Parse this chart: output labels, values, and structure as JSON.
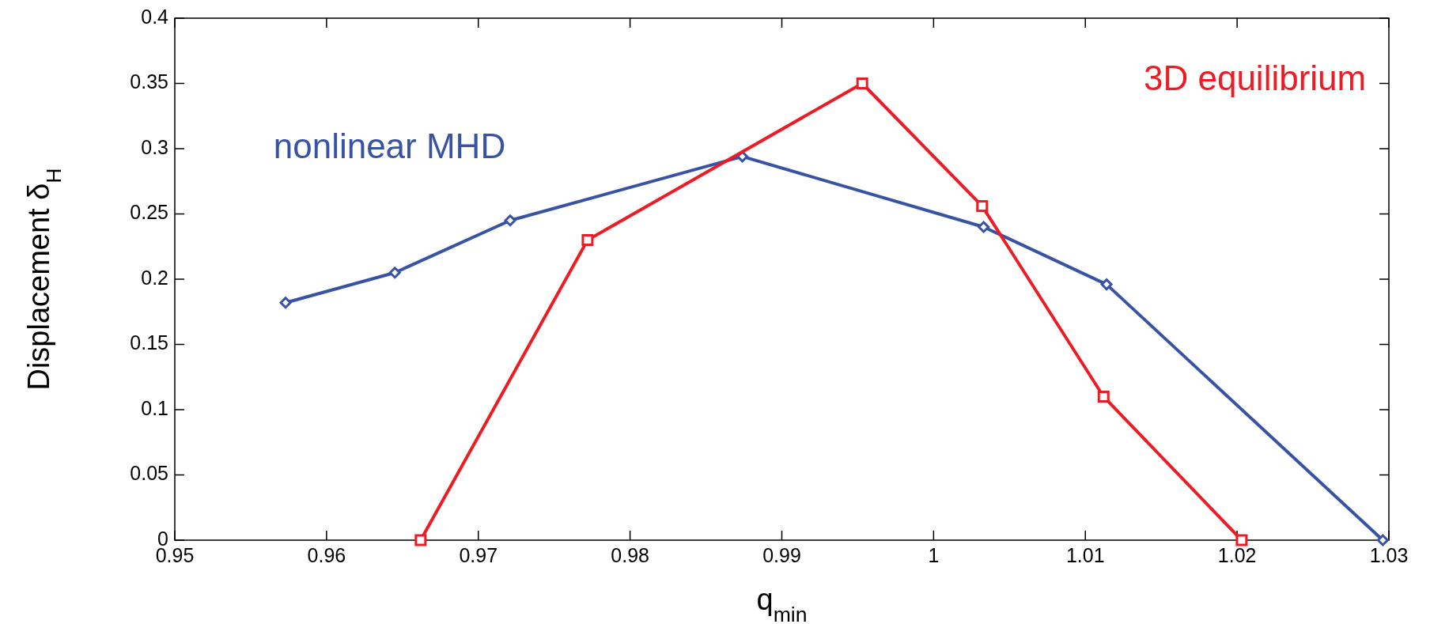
{
  "chart_data": {
    "type": "line",
    "xlabel": "q$_{min}$",
    "ylabel": "Displacement δ$_{H}$",
    "xlim": [
      0.95,
      1.03
    ],
    "xticks": [
      0.95,
      0.96,
      0.97,
      0.98,
      0.99,
      1,
      1.01,
      1.02,
      1.03
    ],
    "ylim": [
      0,
      0.4
    ],
    "yticks": [
      0,
      0.05,
      0.1,
      0.15,
      0.2,
      0.25,
      0.3,
      0.35,
      0.4
    ],
    "grid": false,
    "legend": false,
    "line_style": "solid",
    "series": [
      {
        "name": "nonlinear MHD",
        "color": "#3953a4",
        "marker": "diamond",
        "x": [
          0.9573,
          0.9645,
          0.9721,
          0.9874,
          1.0033,
          1.0114,
          1.0296
        ],
        "values": [
          0.182,
          0.205,
          0.245,
          0.294,
          0.24,
          0.196,
          0
        ]
      },
      {
        "name": "3D equilibrium",
        "color": "#ed1c24",
        "marker": "square",
        "x": [
          0.9662,
          0.9772,
          0.9953,
          1.0032,
          1.0112,
          1.0203
        ],
        "values": [
          0,
          0.23,
          0.35,
          0.256,
          0.11,
          0
        ]
      }
    ]
  }
}
